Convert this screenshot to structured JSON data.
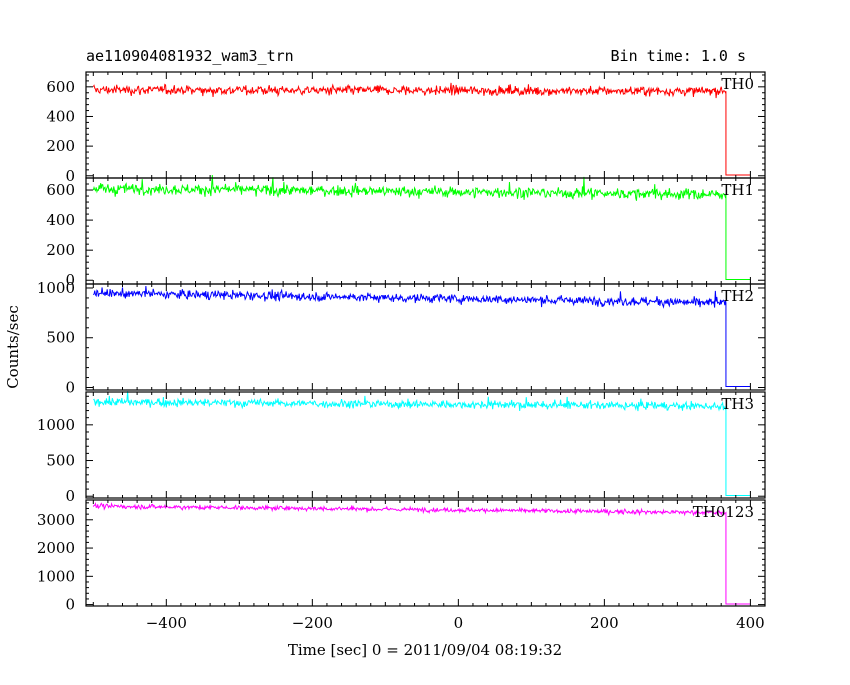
{
  "header": {
    "title": "ae110904081932_wam3_trn",
    "bin_time": "Bin time: 1.0 s"
  },
  "axes": {
    "xlabel": "Time [sec] 0 = 2011/09/04 08:19:32",
    "ylabel": "Counts/sec"
  },
  "chart_data": {
    "type": "line",
    "title": "ae110904081932_wam3_trn",
    "subtitle": "Bin time: 1.0 s",
    "xlabel": "Time [sec] 0 = 2011/09/04 08:19:32",
    "ylabel": "Counts/sec",
    "xlim": [
      -510,
      420
    ],
    "xticks": [
      -400,
      -200,
      0,
      200,
      400
    ],
    "x_tick_labels": [
      "−400",
      "−200",
      "0",
      "200",
      "400"
    ],
    "grid": false,
    "data_start": -500,
    "data_end": 366,
    "bin": 1.0,
    "panels": [
      {
        "name": "TH0",
        "color": "#ff0000",
        "ylim": [
          -15,
          700
        ],
        "yticks": [
          0,
          200,
          400,
          600
        ],
        "y_tick_labels": [
          "0",
          "200",
          "400",
          "600"
        ],
        "start_level": 580,
        "end_level": 570,
        "noise": 25,
        "after_level": 5,
        "series": [
          {
            "name": "TH0",
            "x": [
              -500,
              -250,
              0,
              250,
              366,
              367,
              400
            ],
            "values": [
              580,
              577,
              575,
              572,
              570,
              5,
              5
            ]
          }
        ]
      },
      {
        "name": "TH1",
        "color": "#00ff00",
        "ylim": [
          -25,
          680
        ],
        "yticks": [
          0,
          200,
          400,
          600
        ],
        "y_tick_labels": [
          "0",
          "200",
          "400",
          "600"
        ],
        "start_level": 610,
        "end_level": 570,
        "noise": 28,
        "after_level": 5,
        "series": [
          {
            "name": "TH1",
            "x": [
              -500,
              -250,
              0,
              250,
              366,
              367,
              400
            ],
            "values": [
              610,
              595,
              580,
              575,
              570,
              5,
              5
            ]
          }
        ]
      },
      {
        "name": "TH2",
        "color": "#0000ff",
        "ylim": [
          -25,
          1040
        ],
        "yticks": [
          0,
          500,
          1000
        ],
        "y_tick_labels": [
          "0",
          "500",
          "1000"
        ],
        "start_level": 950,
        "end_level": 850,
        "noise": 35,
        "after_level": 10,
        "series": [
          {
            "name": "TH2",
            "x": [
              -500,
              -250,
              0,
              250,
              366,
              367,
              400
            ],
            "values": [
              950,
              920,
              890,
              860,
              850,
              10,
              10
            ]
          }
        ]
      },
      {
        "name": "TH3",
        "color": "#00ffff",
        "ylim": [
          -25,
          1460
        ],
        "yticks": [
          0,
          500,
          1000
        ],
        "y_tick_labels": [
          "0",
          "500",
          "1000"
        ],
        "start_level": 1320,
        "end_level": 1260,
        "noise": 45,
        "after_level": 10,
        "series": [
          {
            "name": "TH3",
            "x": [
              -500,
              -250,
              0,
              250,
              366,
              367,
              400
            ],
            "values": [
              1320,
              1300,
              1280,
              1265,
              1260,
              10,
              10
            ]
          }
        ]
      },
      {
        "name": "TH0123",
        "color": "#ff00ff",
        "ylim": [
          -50,
          3700
        ],
        "yticks": [
          0,
          1000,
          2000,
          3000
        ],
        "y_tick_labels": [
          "0",
          "1000",
          "2000",
          "3000"
        ],
        "start_level": 3480,
        "end_level": 3250,
        "noise": 60,
        "after_level": 20,
        "series": [
          {
            "name": "TH0123",
            "x": [
              -500,
              -250,
              0,
              250,
              366,
              367,
              400
            ],
            "values": [
              3480,
              3400,
              3330,
              3270,
              3250,
              20,
              20
            ]
          }
        ]
      }
    ]
  }
}
